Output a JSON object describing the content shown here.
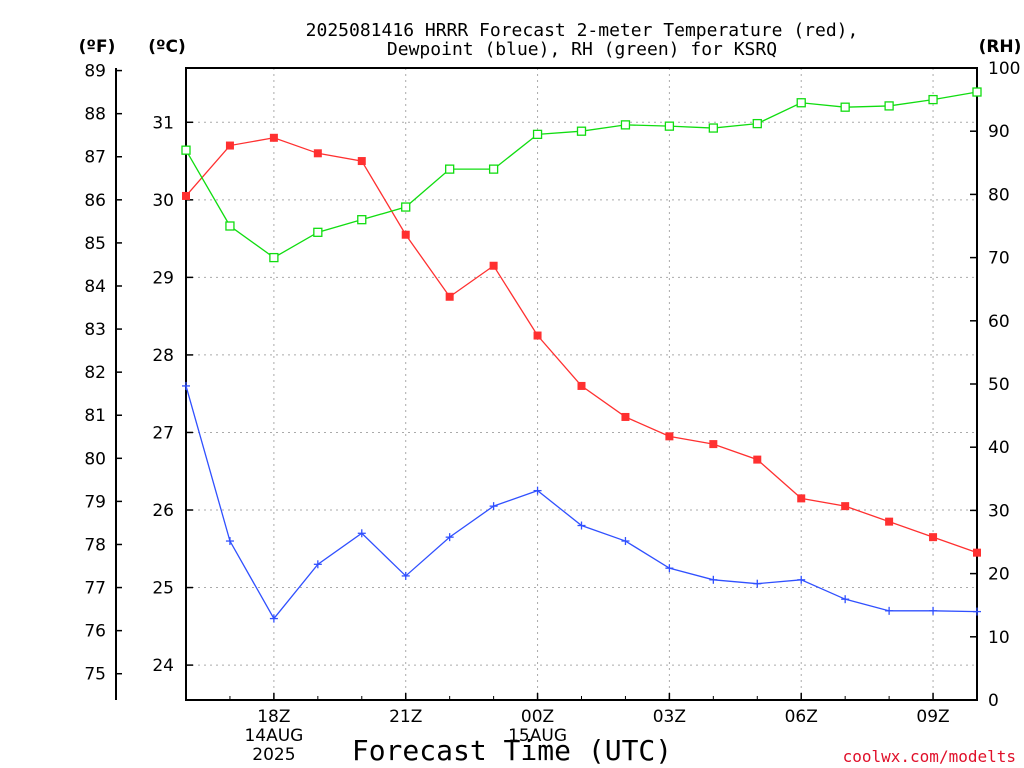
{
  "chart_data": {
    "type": "line",
    "title": "2025081416 HRRR Forecast 2-meter Temperature (red),",
    "subtitle": "Dewpoint (blue), RH (green) for KSRQ",
    "xlabel": "Forecast Time (UTC)",
    "credit": "coolwx.com/modelts",
    "axis_units": {
      "fahrenheit": "(ºF)",
      "celsius": "(ºC)",
      "rh": "(RH)"
    },
    "x_hours": [
      16,
      17,
      18,
      19,
      20,
      21,
      22,
      23,
      24,
      25,
      26,
      27,
      28,
      29,
      30,
      31,
      32,
      33,
      34
    ],
    "x_range": [
      16,
      34
    ],
    "x_ticks": [
      {
        "hour": 18,
        "label": "18Z",
        "sub": [
          "14AUG",
          "2025"
        ]
      },
      {
        "hour": 21,
        "label": "21Z",
        "sub": []
      },
      {
        "hour": 24,
        "label": "00Z",
        "sub": [
          "15AUG"
        ]
      },
      {
        "hour": 27,
        "label": "03Z",
        "sub": []
      },
      {
        "hour": 30,
        "label": "06Z",
        "sub": []
      },
      {
        "hour": 33,
        "label": "09Z",
        "sub": []
      }
    ],
    "celsius_axis": {
      "range": [
        23.55,
        31.7
      ],
      "ticks": [
        24,
        25,
        26,
        27,
        28,
        29,
        30,
        31
      ]
    },
    "fahrenheit_axis": {
      "ticks": [
        75,
        76,
        77,
        78,
        79,
        80,
        81,
        82,
        83,
        84,
        85,
        86,
        87,
        88,
        89
      ]
    },
    "rh_axis": {
      "range": [
        0,
        100
      ],
      "ticks": [
        0,
        10,
        20,
        30,
        40,
        50,
        60,
        70,
        80,
        90,
        100
      ]
    },
    "grid": true,
    "series": [
      {
        "name": "Temperature",
        "color": "#ff3030",
        "marker": "filled-square",
        "axis": "celsius",
        "values": [
          30.05,
          30.7,
          30.8,
          30.6,
          30.5,
          29.55,
          28.75,
          29.15,
          28.25,
          27.6,
          27.2,
          26.95,
          26.85,
          26.65,
          26.15,
          26.05,
          25.85,
          25.65,
          25.45
        ]
      },
      {
        "name": "Dewpoint",
        "color": "#3050ff",
        "marker": "plus",
        "axis": "celsius",
        "values": [
          27.6,
          25.6,
          24.6,
          25.3,
          25.7,
          25.15,
          25.65,
          26.05,
          26.25,
          25.8,
          25.6,
          25.25,
          25.1,
          25.05,
          25.1,
          24.85,
          24.7,
          24.7,
          24.69
        ]
      },
      {
        "name": "RH",
        "color": "#10dd10",
        "marker": "open-square",
        "axis": "rh",
        "values": [
          87,
          75,
          70,
          74,
          76,
          78,
          84,
          84,
          89.5,
          90,
          91,
          90.8,
          90.5,
          91.2,
          94.5,
          93.8,
          94,
          95,
          96.2
        ]
      }
    ]
  }
}
